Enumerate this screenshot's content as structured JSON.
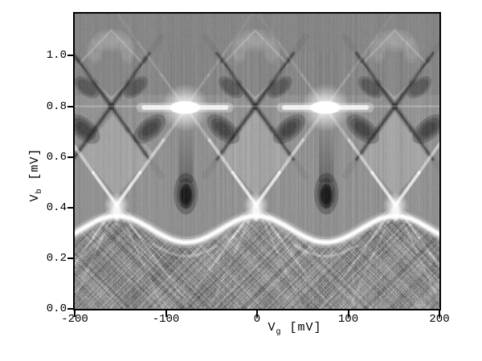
{
  "figure": {
    "background": "#ffffff",
    "frame_color": "#000000"
  },
  "axes": {
    "x": {
      "label": {
        "symbol": "V",
        "subscript": "g",
        "unit": "[mV]"
      },
      "range": [
        -200,
        200
      ],
      "ticks": [
        {
          "value": -200,
          "label": "-200"
        },
        {
          "value": -100,
          "label": "-100"
        },
        {
          "value": 0,
          "label": "0"
        },
        {
          "value": 100,
          "label": "100"
        },
        {
          "value": 200,
          "label": "200"
        }
      ]
    },
    "y": {
      "label": {
        "symbol": "V",
        "subscript": "b",
        "unit": "[mV]"
      },
      "range": [
        0,
        1.166
      ],
      "ticks": [
        {
          "value": 0.0,
          "label": "0.0"
        },
        {
          "value": 0.2,
          "label": "0.2"
        },
        {
          "value": 0.4,
          "label": "0.4"
        },
        {
          "value": 0.6,
          "label": "0.6"
        },
        {
          "value": 0.8,
          "label": "0.8"
        },
        {
          "value": 1.0,
          "label": "1.0"
        }
      ]
    }
  },
  "chart_data": {
    "type": "heatmap",
    "content_summary": "Grayscale differential-conductance map (Coulomb-diamond stability diagram) versus gate voltage Vg (-200..200 mV) and bias Vb (0..~1.17 mV). Periodic diamond lattice (gate period ~153 mV) with bright charge-degeneracy crossings at Vb~0.41, saturated white blobs at Vb~0.8, dark X features between them, a bright wavy conductance band around Vb~0.3, and a heavily noise-streaked region below it.",
    "xlabel": "V_g [mV]",
    "ylabel": "V_b [mV]",
    "x_range": [
      -200,
      200
    ],
    "y_range": [
      0,
      1.166
    ],
    "structure": {
      "gate_period_mV": 153,
      "edge_slope_mV_per_mV": 0.005,
      "diamond_half_width_mV": 77,
      "bright_crossings_low": {
        "v_b": 0.41,
        "v_g": [
          -154,
          -1,
          152
        ]
      },
      "bright_blobs_high": {
        "v_b": 0.795,
        "v_g": [
          -79,
          75
        ]
      },
      "dark_x_high": {
        "v_b": 0.8,
        "v_g": [
          -160,
          -2,
          151
        ]
      },
      "dark_blobs_low": {
        "v_b": 0.455,
        "v_g": [
          -78,
          76
        ]
      },
      "dark_wedge_rows_v_b": [
        0.71,
        0.875
      ],
      "wavy_band": {
        "base_v_b": 0.315,
        "amplitude_v_b": 0.052,
        "period_mV": 153,
        "phase_mV": -1
      },
      "horizontal_bright_line_v_b": 0.8,
      "upper_faint_diamonds": {
        "v_b_bottom": 0.83,
        "v_b_mid": 0.965,
        "v_b_top": 1.1,
        "half_width_mV": 36
      },
      "noise": {
        "heavy_below": "wavy_band",
        "style": "criss-cross vertical/diagonal streaks",
        "seed": 7
      }
    },
    "palette": {
      "base_gray": "#8f8f8f",
      "upper_gray": "#878787",
      "light_diamond": "#b6b6b6",
      "dark_feature": "#141414",
      "bright_feature": "#ffffff"
    },
    "grid": "off",
    "legend": "none",
    "title": ""
  }
}
